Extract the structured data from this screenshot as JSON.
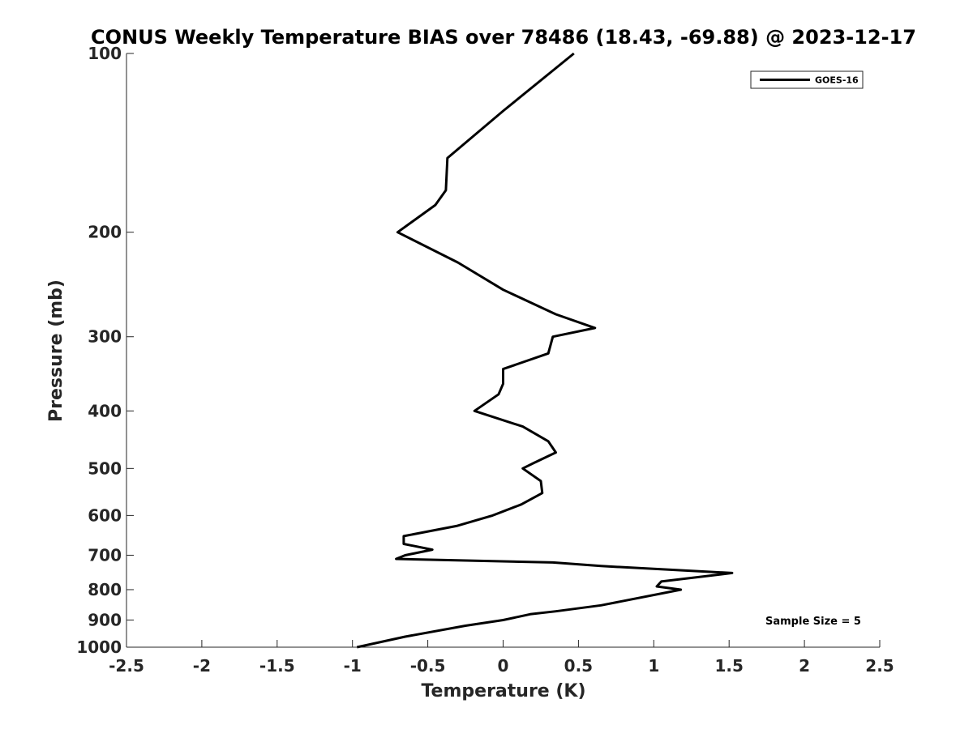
{
  "chart_data": {
    "type": "line",
    "title": "CONUS Weekly Temperature BIAS over 78486 (18.43, -69.88) @ 2023-12-17",
    "xlabel": "Temperature (K)",
    "ylabel": "Pressure (mb)",
    "xlim": [
      -2.5,
      2.5
    ],
    "ylim": [
      100,
      1000
    ],
    "y_scale": "log",
    "y_reversed": true,
    "x_ticks": [
      "-2.5",
      "-2",
      "-1.5",
      "-1",
      "-0.5",
      "0",
      "0.5",
      "1",
      "1.5",
      "2",
      "2.5"
    ],
    "y_ticks": [
      "100",
      "200",
      "300",
      "400",
      "500",
      "600",
      "700",
      "800",
      "900",
      "1000"
    ],
    "grid": false,
    "legend_position": "top-right",
    "annotation": "Sample Size = 5",
    "series": [
      {
        "name": "GOES-16",
        "color": "#000000",
        "points": [
          [
            0.47,
            100
          ],
          [
            0.0,
            125
          ],
          [
            -0.37,
            150
          ],
          [
            -0.38,
            170
          ],
          [
            -0.45,
            180
          ],
          [
            -0.7,
            200
          ],
          [
            -0.3,
            225
          ],
          [
            0.0,
            250
          ],
          [
            0.35,
            275
          ],
          [
            0.61,
            290
          ],
          [
            0.33,
            300
          ],
          [
            0.3,
            320
          ],
          [
            0.0,
            340
          ],
          [
            0.0,
            360
          ],
          [
            -0.03,
            375
          ],
          [
            -0.19,
            400
          ],
          [
            0.13,
            425
          ],
          [
            0.3,
            450
          ],
          [
            0.35,
            470
          ],
          [
            0.2,
            490
          ],
          [
            0.13,
            500
          ],
          [
            0.25,
            525
          ],
          [
            0.26,
            550
          ],
          [
            0.12,
            575
          ],
          [
            -0.07,
            600
          ],
          [
            -0.31,
            625
          ],
          [
            -0.66,
            650
          ],
          [
            -0.66,
            670
          ],
          [
            -0.47,
            685
          ],
          [
            -0.65,
            700
          ],
          [
            -0.71,
            710
          ],
          [
            0.33,
            720
          ],
          [
            0.65,
            730
          ],
          [
            1.52,
            750
          ],
          [
            1.05,
            775
          ],
          [
            1.02,
            790
          ],
          [
            1.18,
            800
          ],
          [
            0.65,
            850
          ],
          [
            0.35,
            870
          ],
          [
            0.18,
            880
          ],
          [
            0.0,
            900
          ],
          [
            -0.25,
            920
          ],
          [
            -0.65,
            960
          ],
          [
            -0.97,
            1000
          ]
        ]
      }
    ]
  }
}
